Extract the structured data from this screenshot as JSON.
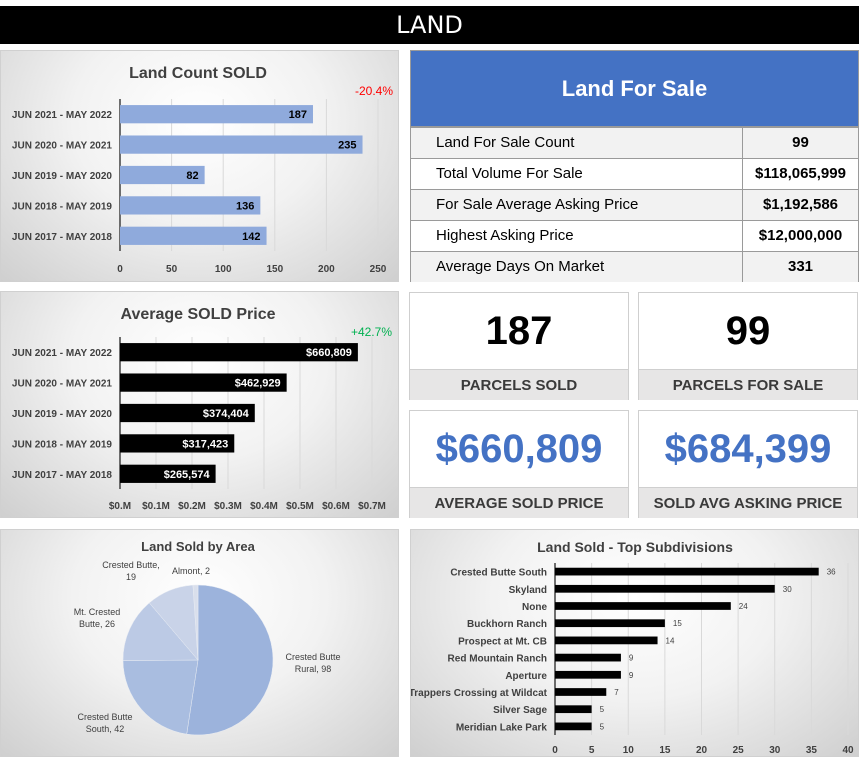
{
  "header": {
    "title": "LAND"
  },
  "land_for_sale": {
    "title": "Land For Sale",
    "rows": [
      {
        "label": "Land For Sale Count",
        "value": "99"
      },
      {
        "label": "Total Volume For Sale",
        "value": "$118,065,999"
      },
      {
        "label": "For Sale Average Asking Price",
        "value": "$1,192,586"
      },
      {
        "label": "Highest Asking Price",
        "value": "$12,000,000"
      },
      {
        "label": "Average Days On Market",
        "value": "331"
      }
    ]
  },
  "kpis": [
    {
      "value": "187",
      "label": "PARCELS SOLD",
      "color": "#000000"
    },
    {
      "value": "99",
      "label": "PARCELS FOR SALE",
      "color": "#000000"
    },
    {
      "value": "$660,809",
      "label": "AVERAGE SOLD PRICE",
      "color": "#4472c4"
    },
    {
      "value": "$684,399",
      "label": "SOLD AVG ASKING PRICE",
      "color": "#4472c4"
    }
  ],
  "chart_data": [
    {
      "type": "bar",
      "orientation": "horizontal",
      "title": "Land Count SOLD",
      "annotation": {
        "text": "-20.4%",
        "color": "#ff0000"
      },
      "categories": [
        "JUN 2021 - MAY 2022",
        "JUN 2020 - MAY 2021",
        "JUN 2019 - MAY 2020",
        "JUN 2018 - MAY 2019",
        "JUN 2017 - MAY 2018"
      ],
      "values": [
        187,
        235,
        82,
        136,
        142
      ],
      "data_labels": [
        "187",
        "235",
        "82",
        "136",
        "142"
      ],
      "xlim": [
        0,
        250
      ],
      "xticks": [
        0,
        50,
        100,
        150,
        200,
        250
      ],
      "xtick_labels": [
        "0",
        "50",
        "100",
        "150",
        "200",
        "250"
      ],
      "bar_color": "#8faadc",
      "label_color": "#000000",
      "grid": true
    },
    {
      "type": "bar",
      "orientation": "horizontal",
      "title": "Average SOLD Price",
      "annotation": {
        "text": "+42.7%",
        "color": "#00b050"
      },
      "categories": [
        "JUN 2021 - MAY 2022",
        "JUN 2020 - MAY 2021",
        "JUN 2019 - MAY 2020",
        "JUN 2018 - MAY 2019",
        "JUN 2017 - MAY 2018"
      ],
      "values": [
        660809,
        462929,
        374404,
        317423,
        265574
      ],
      "data_labels": [
        "$660,809",
        "$462,929",
        "$374,404",
        "$317,423",
        "$265,574"
      ],
      "xlim": [
        0,
        700000
      ],
      "xticks": [
        0,
        100000,
        200000,
        300000,
        400000,
        500000,
        600000,
        700000
      ],
      "xtick_labels": [
        "$0.M",
        "$0.1M",
        "$0.2M",
        "$0.3M",
        "$0.4M",
        "$0.5M",
        "$0.6M",
        "$0.7M"
      ],
      "bar_color": "#000000",
      "label_color": "#ffffff",
      "grid": true
    },
    {
      "type": "pie",
      "title": "Land Sold by Area",
      "labels": [
        "Crested Butte Rural",
        "Crested Butte South",
        "Mt. Crested Butte",
        "Crested Butte",
        "Almont"
      ],
      "values": [
        98,
        42,
        26,
        19,
        2
      ],
      "data_labels": [
        [
          "Crested Butte",
          "Rural, 98"
        ],
        [
          "Crested Butte",
          "South, 42"
        ],
        [
          "Mt. Crested",
          "Butte, 26"
        ],
        [
          "Crested Butte,",
          "19"
        ],
        [
          "Almont, 2"
        ]
      ],
      "colors": [
        "#9cb3dc",
        "#a9bde0",
        "#bccae5",
        "#c9d3e8",
        "#d9dfec"
      ]
    },
    {
      "type": "bar",
      "orientation": "horizontal",
      "title": "Land Sold - Top Subdivisions",
      "categories": [
        "Crested Butte South",
        "Skyland",
        "None",
        "Buckhorn Ranch",
        "Prospect at Mt. CB",
        "Red Mountain Ranch",
        "Aperture",
        "Trappers Crossing at Wildcat",
        "Silver Sage",
        "Meridian Lake Park"
      ],
      "values": [
        36,
        30,
        24,
        15,
        14,
        9,
        9,
        7,
        5,
        5
      ],
      "data_labels": [
        "36",
        "30",
        "24",
        "15",
        "14",
        "9",
        "9",
        "7",
        "5",
        "5"
      ],
      "xlim": [
        0,
        40
      ],
      "xticks": [
        0,
        5,
        10,
        15,
        20,
        25,
        30,
        35,
        40
      ],
      "xtick_labels": [
        "0",
        "5",
        "10",
        "15",
        "20",
        "25",
        "30",
        "35",
        "40"
      ],
      "bar_color": "#000000",
      "grid": true
    }
  ]
}
